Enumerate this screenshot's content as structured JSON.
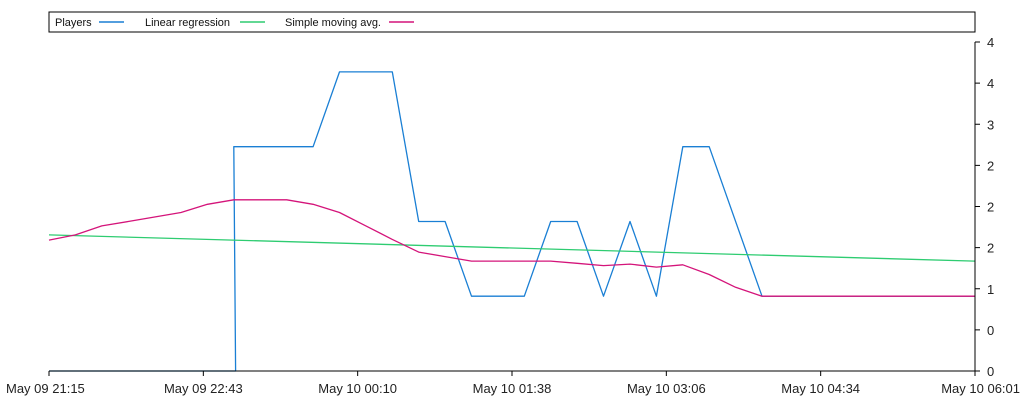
{
  "chart_data": {
    "type": "line",
    "title": "",
    "xlabel": "",
    "ylabel": "",
    "legend": {
      "placement": "top",
      "entries": [
        "Players",
        "Linear regression",
        "Simple moving avg."
      ]
    },
    "x_ticks": [
      "May 09 21:15",
      "May 09 22:43",
      "May 10 00:10",
      "May 10 01:38",
      "May 10 03:06",
      "May 10 04:34",
      "May 10 06:01"
    ],
    "y_ticks": [
      "0",
      "0",
      "1",
      "2",
      "2",
      "2",
      "3",
      "4",
      "4"
    ],
    "ylim": [
      0,
      4.4
    ],
    "grid": false,
    "colors": {
      "players": "#1a7fd4",
      "regression": "#2ecc71",
      "moving_avg": "#d4147a",
      "axis": "#000000"
    },
    "series": [
      {
        "name": "Players",
        "points": [
          [
            "May 09 21:15",
            0
          ],
          [
            "May 09 22:46",
            0
          ],
          [
            "May 09 22:61",
            0
          ],
          [
            "May 09 23:00",
            3
          ],
          [
            "May 09 23:45",
            3
          ],
          [
            "May 10 00:00",
            4
          ],
          [
            "May 10 00:30",
            4
          ],
          [
            "May 10 00:45",
            2
          ],
          [
            "May 10 01:00",
            2
          ],
          [
            "May 10 01:15",
            1
          ],
          [
            "May 10 01:45",
            1
          ],
          [
            "May 10 02:00",
            2
          ],
          [
            "May 10 02:15",
            2
          ],
          [
            "May 10 02:30",
            1
          ],
          [
            "May 10 02:45",
            2
          ],
          [
            "May 10 03:00",
            1
          ],
          [
            "May 10 03:15",
            3
          ],
          [
            "May 10 03:30",
            3
          ],
          [
            "May 10 04:00",
            1
          ],
          [
            "May 10 06:01",
            1
          ]
        ]
      },
      {
        "name": "Linear regression",
        "points": [
          [
            "May 09 21:15",
            1.82
          ],
          [
            "May 10 06:01",
            1.47
          ]
        ]
      },
      {
        "name": "Simple moving avg.",
        "points": [
          [
            "May 09 21:15",
            1.75
          ],
          [
            "May 09 21:30",
            1.82
          ],
          [
            "May 09 21:45",
            1.94
          ],
          [
            "May 09 22:00",
            2.0
          ],
          [
            "May 09 22:15",
            2.06
          ],
          [
            "May 09 22:30",
            2.12
          ],
          [
            "May 09 22:45",
            2.23
          ],
          [
            "May 09 23:00",
            2.29
          ],
          [
            "May 09 23:15",
            2.29
          ],
          [
            "May 09 23:30",
            2.29
          ],
          [
            "May 09 23:45",
            2.23
          ],
          [
            "May 10 00:00",
            2.12
          ],
          [
            "May 10 00:15",
            1.94
          ],
          [
            "May 10 00:30",
            1.76
          ],
          [
            "May 10 00:45",
            1.59
          ],
          [
            "May 10 01:00",
            1.53
          ],
          [
            "May 10 01:15",
            1.47
          ],
          [
            "May 10 01:30",
            1.47
          ],
          [
            "May 10 01:45",
            1.47
          ],
          [
            "May 10 02:00",
            1.47
          ],
          [
            "May 10 02:15",
            1.44
          ],
          [
            "May 10 02:30",
            1.41
          ],
          [
            "May 10 02:45",
            1.43
          ],
          [
            "May 10 03:00",
            1.39
          ],
          [
            "May 10 03:15",
            1.42
          ],
          [
            "May 10 03:30",
            1.29
          ],
          [
            "May 10 03:45",
            1.12
          ],
          [
            "May 10 04:00",
            1.0
          ],
          [
            "May 10 06:01",
            1.0
          ]
        ]
      }
    ]
  }
}
